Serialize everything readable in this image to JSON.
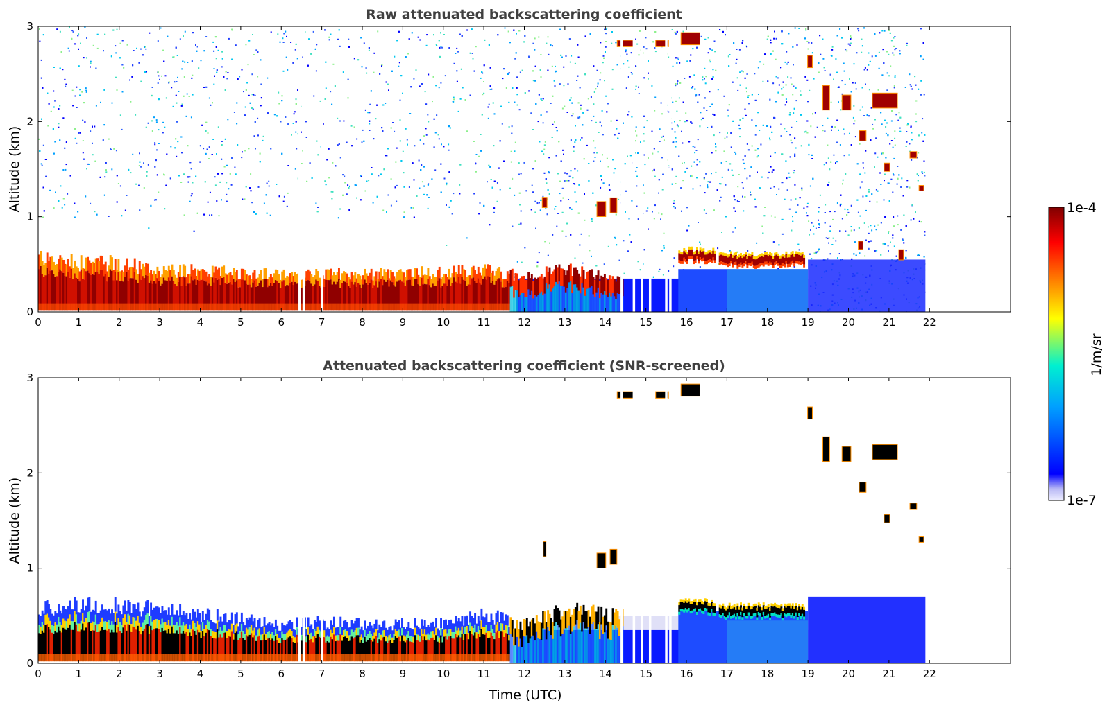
{
  "chart_data": [
    {
      "type": "heatmap",
      "title": "Raw attenuated backscattering coefficient",
      "xlabel": "",
      "ylabel": "Altitude (km)",
      "xlim": [
        0,
        24
      ],
      "ylim": [
        0,
        3
      ],
      "x_ticks": [
        "0",
        "1",
        "2",
        "3",
        "4",
        "5",
        "6",
        "7",
        "8",
        "9",
        "10",
        "11",
        "12",
        "13",
        "14",
        "15",
        "16",
        "17",
        "18",
        "19",
        "20",
        "21",
        "22"
      ],
      "y_ticks": [
        "0",
        "1",
        "2",
        "3"
      ],
      "data_extent_hours": 21.9,
      "colorscale": "log",
      "boundary_layer_top_km": [
        {
          "t": 0,
          "z": 0.55
        },
        {
          "t": 1,
          "z": 0.5
        },
        {
          "t": 2,
          "z": 0.5
        },
        {
          "t": 3,
          "z": 0.42
        },
        {
          "t": 4,
          "z": 0.42
        },
        {
          "t": 5,
          "z": 0.4
        },
        {
          "t": 6,
          "z": 0.38
        },
        {
          "t": 7,
          "z": 0.4
        },
        {
          "t": 8,
          "z": 0.38
        },
        {
          "t": 9,
          "z": 0.4
        },
        {
          "t": 10,
          "z": 0.4
        },
        {
          "t": 11,
          "z": 0.45
        },
        {
          "t": 12,
          "z": 0.35
        },
        {
          "t": 13,
          "z": 0.45
        },
        {
          "t": 14,
          "z": 0.35
        }
      ],
      "elevated_layers": [
        {
          "t0": 15.8,
          "t1": 16.7,
          "z": 0.6
        },
        {
          "t0": 16.8,
          "t1": 18.9,
          "z": 0.55
        }
      ],
      "clouds": [
        {
          "t": 12.5,
          "z": 1.15,
          "w": 0.1,
          "h": 0.1
        },
        {
          "t": 13.9,
          "z": 1.08,
          "w": 0.2,
          "h": 0.15
        },
        {
          "t": 14.2,
          "z": 1.12,
          "w": 0.15,
          "h": 0.15
        },
        {
          "t": 14.5,
          "z": 2.82,
          "w": 0.4,
          "h": 0.06
        },
        {
          "t": 15.4,
          "z": 2.82,
          "w": 0.3,
          "h": 0.06
        },
        {
          "t": 16.1,
          "z": 2.87,
          "w": 0.45,
          "h": 0.12
        },
        {
          "t": 19.05,
          "z": 2.63,
          "w": 0.1,
          "h": 0.12
        },
        {
          "t": 19.45,
          "z": 2.25,
          "w": 0.15,
          "h": 0.25
        },
        {
          "t": 19.95,
          "z": 2.2,
          "w": 0.2,
          "h": 0.15
        },
        {
          "t": 20.35,
          "z": 1.85,
          "w": 0.15,
          "h": 0.1
        },
        {
          "t": 20.9,
          "z": 2.22,
          "w": 0.6,
          "h": 0.15
        },
        {
          "t": 20.95,
          "z": 1.52,
          "w": 0.12,
          "h": 0.08
        },
        {
          "t": 21.6,
          "z": 1.65,
          "w": 0.15,
          "h": 0.06
        },
        {
          "t": 21.8,
          "z": 1.3,
          "w": 0.1,
          "h": 0.05
        },
        {
          "t": 20.3,
          "z": 0.7,
          "w": 0.1,
          "h": 0.08
        },
        {
          "t": 21.3,
          "z": 0.6,
          "w": 0.1,
          "h": 0.1
        }
      ],
      "data_gaps_hours": [
        6.45,
        6.55,
        7.0,
        14.4,
        14.7,
        14.9,
        15.1,
        15.5,
        15.6
      ]
    },
    {
      "type": "heatmap",
      "title": "Attenuated backscattering coefficient (SNR-screened)",
      "xlabel": "Time (UTC)",
      "ylabel": "Altitude (km)",
      "xlim": [
        0,
        24
      ],
      "ylim": [
        0,
        3
      ],
      "x_ticks": [
        "0",
        "1",
        "2",
        "3",
        "4",
        "5",
        "6",
        "7",
        "8",
        "9",
        "10",
        "11",
        "12",
        "13",
        "14",
        "15",
        "16",
        "17",
        "18",
        "19",
        "20",
        "21",
        "22"
      ],
      "y_ticks": [
        "0",
        "1",
        "2",
        "3"
      ],
      "data_extent_hours": 21.9,
      "colorscale": "log",
      "boundary_layer_top_km": [
        {
          "t": 0,
          "z": 0.55
        },
        {
          "t": 1,
          "z": 0.6
        },
        {
          "t": 2,
          "z": 0.6
        },
        {
          "t": 3,
          "z": 0.55
        },
        {
          "t": 4,
          "z": 0.5
        },
        {
          "t": 5,
          "z": 0.45
        },
        {
          "t": 6,
          "z": 0.4
        },
        {
          "t": 7,
          "z": 0.42
        },
        {
          "t": 8,
          "z": 0.4
        },
        {
          "t": 9,
          "z": 0.4
        },
        {
          "t": 10,
          "z": 0.4
        },
        {
          "t": 11,
          "z": 0.5
        },
        {
          "t": 12,
          "z": 0.4
        },
        {
          "t": 13,
          "z": 0.55
        },
        {
          "t": 14,
          "z": 0.5
        }
      ],
      "elevated_layers": [
        {
          "t0": 15.8,
          "t1": 16.7,
          "z": 0.6
        },
        {
          "t0": 16.8,
          "t1": 18.9,
          "z": 0.55
        }
      ],
      "clouds": [
        {
          "t": 12.5,
          "z": 1.2,
          "w": 0.05,
          "h": 0.15
        },
        {
          "t": 13.9,
          "z": 1.08,
          "w": 0.2,
          "h": 0.15
        },
        {
          "t": 14.2,
          "z": 1.12,
          "w": 0.15,
          "h": 0.15
        },
        {
          "t": 14.5,
          "z": 2.82,
          "w": 0.4,
          "h": 0.06
        },
        {
          "t": 15.4,
          "z": 2.82,
          "w": 0.3,
          "h": 0.06
        },
        {
          "t": 16.1,
          "z": 2.87,
          "w": 0.45,
          "h": 0.12
        },
        {
          "t": 19.05,
          "z": 2.63,
          "w": 0.1,
          "h": 0.12
        },
        {
          "t": 19.45,
          "z": 2.25,
          "w": 0.15,
          "h": 0.25
        },
        {
          "t": 19.95,
          "z": 2.2,
          "w": 0.2,
          "h": 0.15
        },
        {
          "t": 20.35,
          "z": 1.85,
          "w": 0.15,
          "h": 0.1
        },
        {
          "t": 20.9,
          "z": 2.22,
          "w": 0.6,
          "h": 0.15
        },
        {
          "t": 20.95,
          "z": 1.52,
          "w": 0.12,
          "h": 0.08
        },
        {
          "t": 21.6,
          "z": 1.65,
          "w": 0.15,
          "h": 0.06
        },
        {
          "t": 21.8,
          "z": 1.3,
          "w": 0.1,
          "h": 0.05
        }
      ],
      "data_gaps_hours": [
        6.45,
        6.55,
        7.0,
        14.4,
        14.7,
        14.9,
        15.1,
        15.5,
        15.6
      ]
    }
  ],
  "colorbar": {
    "label": "1/m/sr",
    "max_label": "1e-4",
    "min_label": "1e-7",
    "colormap": "jet",
    "colors": [
      "#e6e6fa",
      "#0000ff",
      "#00bfff",
      "#00ffbf",
      "#ffff00",
      "#ff7f00",
      "#ff0000",
      "#800000"
    ]
  }
}
